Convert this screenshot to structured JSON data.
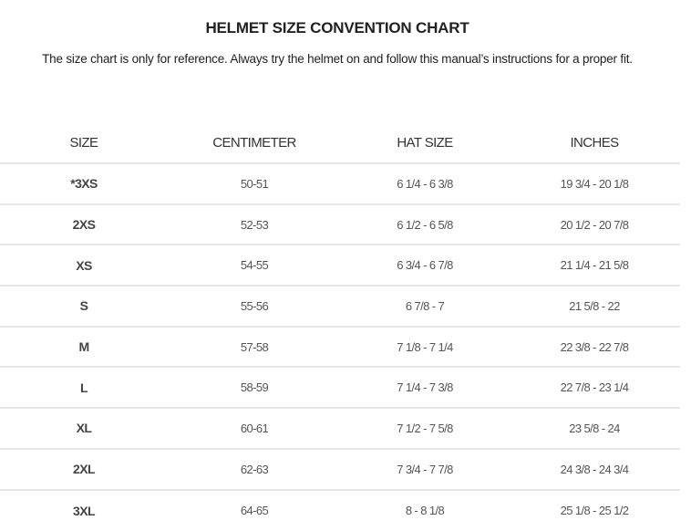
{
  "title": "HELMET SIZE CONVENTION CHART",
  "subtitle": "The size chart is only for reference. Always try the helmet on and follow this manual’s instructions for a proper fit.",
  "table": {
    "headers": [
      "SIZE",
      "CENTIMETER",
      "HAT SIZE",
      "INCHES"
    ],
    "rows": [
      [
        "*3XS",
        "50-51",
        "6 1/4 - 6 3/8",
        "19 3/4 - 20 1/8"
      ],
      [
        "2XS",
        "52-53",
        "6 1/2 - 6 5/8",
        "20 1/2 - 20 7/8"
      ],
      [
        "XS",
        "54-55",
        "6 3/4 - 6 7/8",
        "21 1/4 - 21 5/8"
      ],
      [
        "S",
        "55-56",
        "6 7/8 - 7",
        "21 5/8 - 22"
      ],
      [
        "M",
        "57-58",
        "7 1/8 - 7 1/4",
        "22 3/8 - 22 7/8"
      ],
      [
        "L",
        "58-59",
        "7 1/4 - 7 3/8",
        "22 7/8 - 23 1/4"
      ],
      [
        "XL",
        "60-61",
        "7 1/2 - 7 5/8",
        "23 5/8 - 24"
      ],
      [
        "2XL",
        "62-63",
        "7 3/4 - 7 7/8",
        "24 3/8 - 24 3/4"
      ],
      [
        "3XL",
        "64-65",
        "8 - 8 1/8",
        "25 1/8 - 25 1/2"
      ]
    ]
  }
}
